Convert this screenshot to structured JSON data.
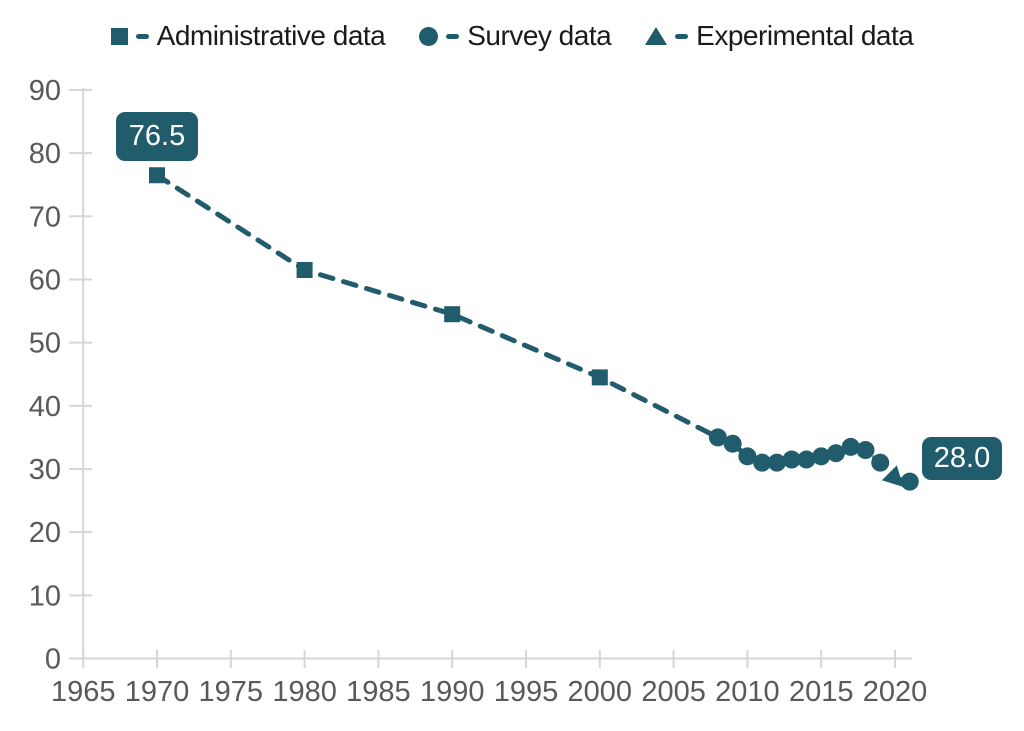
{
  "chart_data": {
    "type": "line",
    "title": "",
    "xlabel": "",
    "ylabel": "",
    "line_style": "dashed",
    "grid": false,
    "legend_position": "top-center",
    "legend": [
      {
        "label": "Administrative data",
        "marker": "square-icon"
      },
      {
        "label": "Survey data",
        "marker": "circle-icon"
      },
      {
        "label": "Experimental data",
        "marker": "triangle-icon"
      }
    ],
    "x_ticks": [
      1965,
      1970,
      1975,
      1980,
      1985,
      1990,
      1995,
      2000,
      2005,
      2010,
      2015,
      2020
    ],
    "y_ticks": [
      0,
      10,
      20,
      30,
      40,
      50,
      60,
      70,
      80,
      90
    ],
    "x_range": [
      1965,
      2021.3
    ],
    "ylim": [
      0,
      90
    ],
    "series": [
      {
        "name": "Administrative data",
        "marker": "square",
        "points": [
          {
            "x": 1970,
            "y": 76.5
          },
          {
            "x": 1980,
            "y": 61.5
          },
          {
            "x": 1990,
            "y": 54.5
          },
          {
            "x": 2000,
            "y": 44.5
          }
        ]
      },
      {
        "name": "Survey data",
        "marker": "circle",
        "points": [
          {
            "x": 2008,
            "y": 35.0
          },
          {
            "x": 2009,
            "y": 34.0
          },
          {
            "x": 2010,
            "y": 32.0
          },
          {
            "x": 2011,
            "y": 31.0
          },
          {
            "x": 2012,
            "y": 31.0
          },
          {
            "x": 2013,
            "y": 31.5
          },
          {
            "x": 2014,
            "y": 31.5
          },
          {
            "x": 2015,
            "y": 32.0
          },
          {
            "x": 2016,
            "y": 32.5
          },
          {
            "x": 2017,
            "y": 33.5
          },
          {
            "x": 2018,
            "y": 33.0
          },
          {
            "x": 2019,
            "y": 31.0
          },
          {
            "x": 2021,
            "y": 28.0
          }
        ]
      },
      {
        "name": "Experimental data",
        "marker": "triangle",
        "points": [
          {
            "x": 2020,
            "y": 28.5
          }
        ]
      }
    ],
    "annotations": [
      {
        "text": "76.5",
        "x": 1970,
        "y": 76.5,
        "placement": "above"
      },
      {
        "text": "28.0",
        "x": 2021,
        "y": 28.0,
        "placement": "right"
      }
    ],
    "colors": {
      "series": "#205c6b",
      "axis_line": "#d6d6d6",
      "tick_label": "#595959",
      "legend_text": "#1a1a1a",
      "annotation_bg": "#205c6b",
      "annotation_text": "#ffffff"
    }
  }
}
